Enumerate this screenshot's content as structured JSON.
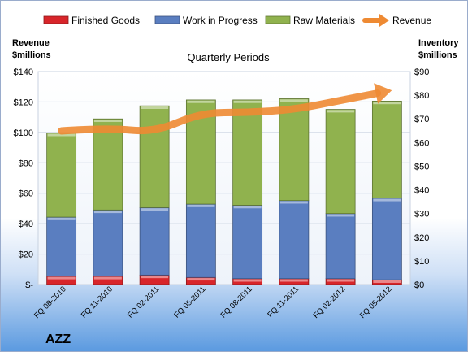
{
  "chart_data": {
    "type": "bar",
    "subtitle": "Quarterly Periods",
    "company": "AZZ",
    "left_axis": {
      "label_line1": "Revenue",
      "label_line2": "$millions",
      "ylim": [
        0,
        140
      ],
      "ticks": [
        "$-",
        "$20",
        "$40",
        "$60",
        "$80",
        "$100",
        "$120",
        "$140"
      ]
    },
    "right_axis": {
      "label_line1": "Inventory",
      "label_line2": "$millions",
      "ylim": [
        0,
        90
      ],
      "ticks": [
        "$0",
        "$10",
        "$20",
        "$30",
        "$40",
        "$50",
        "$60",
        "$70",
        "$80",
        "$90"
      ]
    },
    "categories": [
      "FQ 08-2010",
      "FQ 11-2010",
      "FQ 02-2011",
      "FQ 05-2011",
      "FQ 08-2011",
      "FQ 11-2011",
      "FQ 02-2012",
      "FQ 05-2012"
    ],
    "series": [
      {
        "name": "Finished Goods",
        "axis": "right",
        "color": "#d8252a",
        "values": [
          3.5,
          3.5,
          4.0,
          3.0,
          2.5,
          2.5,
          2.5,
          2.0
        ]
      },
      {
        "name": "Work in Progress",
        "axis": "right",
        "color": "#5a7ec0",
        "values": [
          25,
          28,
          28.5,
          31,
          31,
          33,
          27.5,
          34.5
        ]
      },
      {
        "name": "Raw Materials",
        "axis": "right",
        "color": "#90b24e",
        "values": [
          35.5,
          38.5,
          43,
          44,
          44.5,
          43,
          44,
          41
        ]
      },
      {
        "name": "Revenue",
        "axis": "left",
        "color": "#ee8a33",
        "type": "line",
        "values": [
          101,
          103,
          100,
          113,
          113,
          115,
          121,
          127
        ]
      }
    ],
    "legend_position": "top",
    "grid": true
  }
}
